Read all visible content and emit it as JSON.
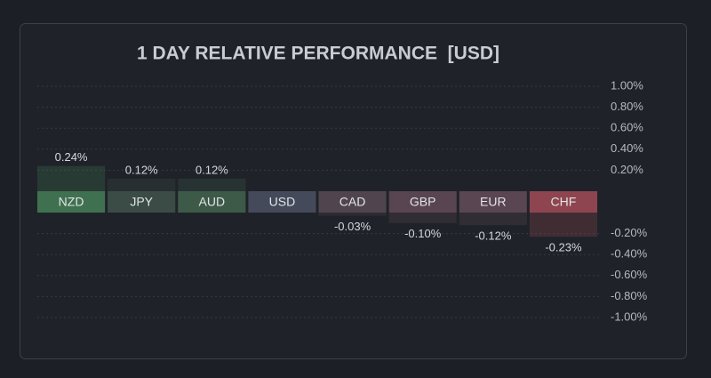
{
  "chart_data": {
    "type": "bar",
    "title": "1 DAY RELATIVE PERFORMANCE  [USD]",
    "categories": [
      "NZD",
      "JPY",
      "AUD",
      "USD",
      "CAD",
      "GBP",
      "EUR",
      "CHF"
    ],
    "values": [
      0.24,
      0.12,
      0.12,
      0,
      -0.03,
      -0.1,
      -0.12,
      -0.23
    ],
    "value_labels": [
      "0.24%",
      "0.12%",
      "0.12%",
      null,
      "-0.03%",
      "-0.10%",
      "-0.12%",
      "-0.23%"
    ],
    "colors": [
      "#3f7150",
      "#3a4c45",
      "#3d5a48",
      "#454a5b",
      "#50454f",
      "#584551",
      "#5a4552",
      "#8e4550"
    ],
    "ylim": [
      -1,
      1
    ],
    "yticks": [
      {
        "value": 1,
        "label": "1.00%"
      },
      {
        "value": 0.8,
        "label": "0.80%"
      },
      {
        "value": 0.6,
        "label": "0.60%"
      },
      {
        "value": 0.4,
        "label": "0.40%"
      },
      {
        "value": 0.2,
        "label": "0.20%"
      },
      {
        "value": -0.2,
        "label": "-0.20%"
      },
      {
        "value": -0.4,
        "label": "-0.40%"
      },
      {
        "value": -0.6,
        "label": "-0.60%"
      },
      {
        "value": -0.8,
        "label": "-0.80%"
      },
      {
        "value": -1,
        "label": "-1.00%"
      }
    ],
    "grid": true
  }
}
